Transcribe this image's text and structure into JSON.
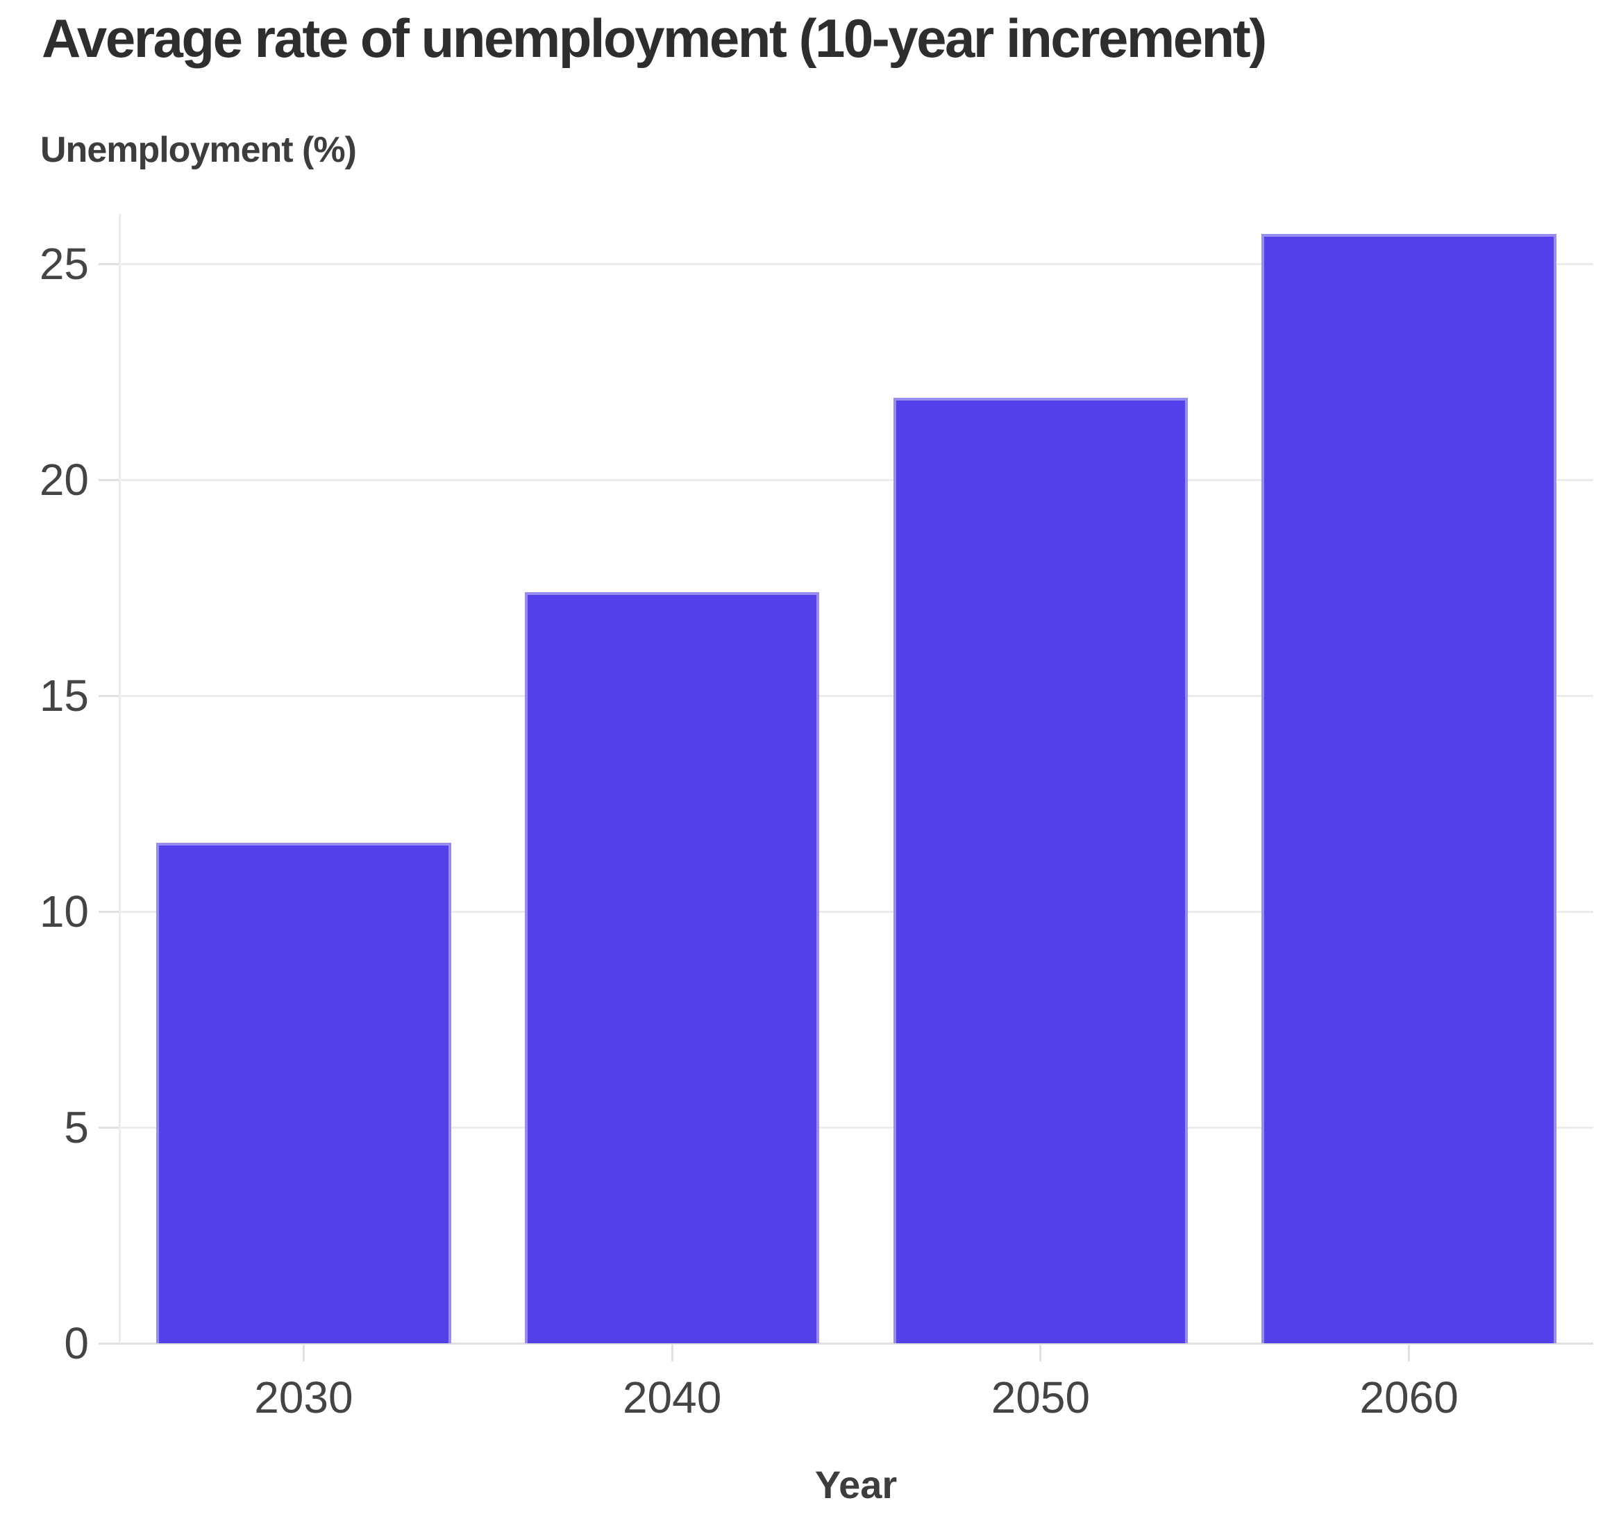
{
  "chart_data": {
    "type": "bar",
    "title": "Average rate of unemployment (10-year increment)",
    "y_axis_title": "Unemployment (%)",
    "xlabel": "Year",
    "categories": [
      "2030",
      "2040",
      "2050",
      "2060"
    ],
    "values": [
      11.6,
      17.4,
      21.9,
      25.7
    ],
    "yticks": [
      0,
      5,
      10,
      15,
      20,
      25
    ],
    "ylim": [
      0,
      26.16
    ],
    "grid": "horizontal",
    "legend": "none",
    "bar_width_ratio": 0.8,
    "colors": {
      "bar_fill": "#5340E8",
      "bar_edge": "rgba(255,255,255,0.4)",
      "gridline": "#ececec",
      "axis_line": "#e0e0e0",
      "title_text": "#2e2e2e",
      "axis_title_text": "#3d3d3d",
      "tick_text": "#444444",
      "background": "#ffffff"
    }
  }
}
